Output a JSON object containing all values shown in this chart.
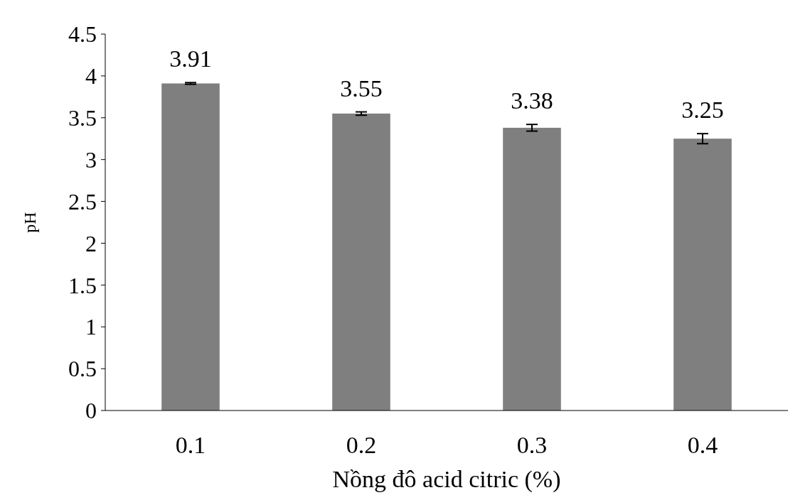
{
  "chart_data": {
    "type": "bar",
    "xlabel": "Nồng đô acid citric (%)",
    "ylabel": "pH",
    "categories": [
      "0.1",
      "0.2",
      "0.3",
      "0.4"
    ],
    "values": [
      3.91,
      3.55,
      3.38,
      3.25
    ],
    "errors": [
      0.01,
      0.02,
      0.04,
      0.06
    ],
    "color": "#7f7f7f",
    "ylim": [
      0,
      4.5
    ],
    "yticks": [
      0,
      0.5,
      1,
      1.5,
      2,
      2.5,
      3,
      3.5,
      4,
      4.5
    ],
    "data_labels": true,
    "grid": false
  }
}
